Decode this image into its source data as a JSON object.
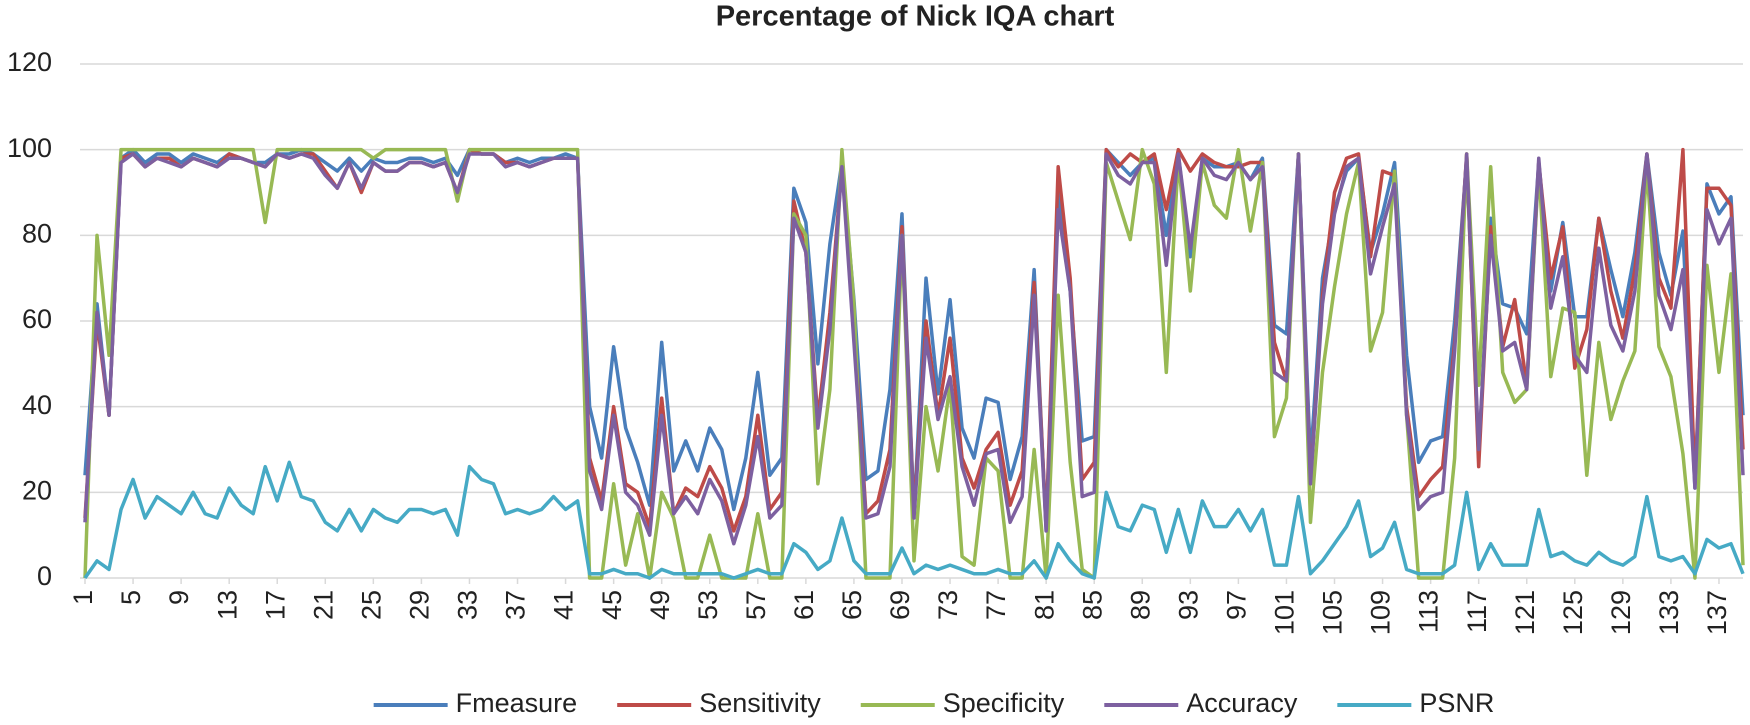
{
  "chart_data": {
    "type": "line",
    "title": "Percentage of Nick IQA chart",
    "x": [
      1,
      2,
      3,
      4,
      5,
      6,
      7,
      8,
      9,
      10,
      11,
      12,
      13,
      14,
      15,
      16,
      17,
      18,
      19,
      20,
      21,
      22,
      23,
      24,
      25,
      26,
      27,
      28,
      29,
      30,
      31,
      32,
      33,
      34,
      35,
      36,
      37,
      38,
      39,
      40,
      41,
      42,
      43,
      44,
      45,
      46,
      47,
      48,
      49,
      50,
      51,
      52,
      53,
      54,
      55,
      56,
      57,
      58,
      59,
      60,
      61,
      62,
      63,
      64,
      65,
      66,
      67,
      68,
      69,
      70,
      71,
      72,
      73,
      74,
      75,
      76,
      77,
      78,
      79,
      80,
      81,
      82,
      83,
      84,
      85,
      86,
      87,
      88,
      89,
      90,
      91,
      92,
      93,
      94,
      95,
      96,
      97,
      98,
      99,
      100,
      101,
      102,
      103,
      104,
      105,
      106,
      107,
      108,
      109,
      110,
      111,
      112,
      113,
      114,
      115,
      116,
      117,
      118,
      119,
      120,
      121,
      122,
      123,
      124,
      125,
      126,
      127,
      128,
      129,
      130,
      131,
      132,
      133,
      134,
      135,
      136,
      137,
      138,
      139
    ],
    "xlim": [
      1,
      139
    ],
    "xticks": [
      1,
      5,
      9,
      13,
      17,
      21,
      25,
      29,
      33,
      37,
      41,
      45,
      49,
      53,
      57,
      61,
      65,
      69,
      73,
      77,
      81,
      85,
      89,
      93,
      97,
      101,
      105,
      109,
      113,
      117,
      121,
      125,
      129,
      133,
      137
    ],
    "ylim": [
      0,
      120
    ],
    "yticks": [
      0,
      20,
      40,
      60,
      80,
      100,
      120
    ],
    "grid": true,
    "legend": "bottom",
    "series": [
      {
        "name": "Fmeasure",
        "color": "#4a7ebb",
        "values": [
          24,
          64,
          38,
          98,
          100,
          97,
          99,
          99,
          97,
          99,
          98,
          97,
          99,
          98,
          97,
          97,
          99,
          99,
          100,
          99,
          97,
          95,
          98,
          95,
          98,
          97,
          97,
          98,
          98,
          97,
          98,
          94,
          100,
          99,
          99,
          97,
          98,
          97,
          98,
          98,
          99,
          98,
          40,
          28,
          54,
          35,
          27,
          17,
          55,
          25,
          32,
          25,
          35,
          30,
          16,
          28,
          48,
          24,
          28,
          91,
          83,
          50,
          78,
          97,
          65,
          23,
          25,
          44,
          85,
          15,
          70,
          43,
          65,
          35,
          28,
          42,
          41,
          23,
          33,
          72,
          11,
          90,
          67,
          32,
          33,
          100,
          97,
          94,
          97,
          98,
          80,
          99,
          75,
          98,
          96,
          96,
          97,
          93,
          98,
          59,
          57,
          99,
          27,
          70,
          86,
          95,
          98,
          76,
          85,
          97,
          52,
          27,
          32,
          33,
          60,
          98,
          28,
          84,
          64,
          63,
          57,
          97,
          67,
          83,
          61,
          61,
          84,
          72,
          61,
          76,
          99,
          76,
          66,
          81,
          21,
          92,
          85,
          89,
          38
        ]
      },
      {
        "name": "Sensitivity",
        "color": "#be4b48",
        "values": [
          14,
          60,
          38,
          98,
          99,
          96,
          98,
          98,
          96,
          98,
          97,
          96,
          99,
          98,
          97,
          96,
          99,
          98,
          99,
          99,
          95,
          91,
          97,
          90,
          97,
          95,
          95,
          97,
          97,
          96,
          97,
          90,
          100,
          99,
          99,
          97,
          97,
          96,
          97,
          98,
          98,
          98,
          28,
          18,
          40,
          22,
          20,
          12,
          42,
          15,
          21,
          19,
          26,
          21,
          11,
          19,
          38,
          16,
          20,
          88,
          76,
          37,
          62,
          96,
          60,
          15,
          18,
          30,
          82,
          15,
          60,
          38,
          56,
          28,
          21,
          30,
          34,
          17,
          25,
          69,
          12,
          96,
          70,
          23,
          27,
          100,
          96,
          99,
          97,
          99,
          86,
          100,
          95,
          99,
          97,
          96,
          96,
          97,
          97,
          55,
          46,
          99,
          22,
          66,
          90,
          98,
          99,
          75,
          95,
          94,
          40,
          19,
          23,
          26,
          55,
          99,
          26,
          82,
          54,
          65,
          45,
          97,
          70,
          82,
          49,
          58,
          84,
          67,
          56,
          72,
          99,
          70,
          63,
          100,
          22,
          91,
          91,
          87,
          30
        ]
      },
      {
        "name": "Specificity",
        "color": "#98b954",
        "values": [
          0,
          80,
          52,
          100,
          100,
          100,
          100,
          100,
          100,
          100,
          100,
          100,
          100,
          100,
          100,
          83,
          100,
          100,
          100,
          100,
          100,
          100,
          100,
          100,
          98,
          100,
          100,
          100,
          100,
          100,
          100,
          88,
          100,
          100,
          100,
          100,
          100,
          100,
          100,
          100,
          100,
          100,
          0,
          0,
          22,
          3,
          15,
          0,
          20,
          14,
          0,
          0,
          10,
          0,
          0,
          0,
          15,
          0,
          0,
          85,
          80,
          22,
          44,
          100,
          64,
          0,
          0,
          0,
          80,
          4,
          40,
          25,
          45,
          5,
          3,
          28,
          25,
          0,
          0,
          30,
          0,
          66,
          27,
          2,
          0,
          97,
          88,
          79,
          100,
          92,
          48,
          98,
          67,
          97,
          87,
          84,
          100,
          81,
          97,
          33,
          42,
          99,
          13,
          48,
          68,
          85,
          97,
          53,
          62,
          95,
          38,
          0,
          0,
          0,
          28,
          99,
          45,
          96,
          48,
          41,
          44,
          96,
          47,
          63,
          62,
          24,
          55,
          37,
          46,
          53,
          96,
          54,
          47,
          29,
          0,
          73,
          48,
          71,
          3
        ]
      },
      {
        "name": "Accuracy",
        "color": "#7d60a0",
        "values": [
          13,
          62,
          38,
          97,
          99,
          96,
          98,
          97,
          96,
          98,
          97,
          96,
          98,
          98,
          97,
          96,
          99,
          98,
          99,
          98,
          94,
          91,
          97,
          91,
          97,
          95,
          95,
          97,
          97,
          96,
          97,
          90,
          99,
          99,
          99,
          96,
          97,
          96,
          97,
          98,
          98,
          98,
          25,
          16,
          38,
          20,
          17,
          10,
          38,
          15,
          19,
          15,
          23,
          18,
          8,
          17,
          33,
          14,
          17,
          84,
          76,
          35,
          58,
          96,
          55,
          14,
          15,
          26,
          80,
          14,
          56,
          37,
          47,
          26,
          17,
          29,
          30,
          13,
          19,
          66,
          11,
          86,
          67,
          19,
          20,
          99,
          94,
          92,
          97,
          97,
          73,
          99,
          77,
          98,
          94,
          93,
          97,
          93,
          96,
          48,
          46,
          99,
          22,
          64,
          85,
          96,
          98,
          71,
          82,
          92,
          38,
          16,
          19,
          20,
          53,
          99,
          30,
          80,
          53,
          55,
          44,
          98,
          63,
          75,
          52,
          48,
          77,
          59,
          53,
          67,
          99,
          66,
          58,
          72,
          21,
          86,
          78,
          84,
          24
        ]
      },
      {
        "name": "PSNR",
        "color": "#46aac5",
        "values": [
          0,
          4,
          2,
          16,
          23,
          14,
          19,
          17,
          15,
          20,
          15,
          14,
          21,
          17,
          15,
          26,
          18,
          27,
          19,
          18,
          13,
          11,
          16,
          11,
          16,
          14,
          13,
          16,
          16,
          15,
          16,
          10,
          26,
          23,
          22,
          15,
          16,
          15,
          16,
          19,
          16,
          18,
          1,
          1,
          2,
          1,
          1,
          0,
          2,
          1,
          1,
          1,
          1,
          1,
          0,
          1,
          2,
          1,
          1,
          8,
          6,
          2,
          4,
          14,
          4,
          1,
          1,
          1,
          7,
          1,
          3,
          2,
          3,
          2,
          1,
          1,
          2,
          1,
          1,
          4,
          0,
          8,
          4,
          1,
          0,
          20,
          12,
          11,
          17,
          16,
          6,
          16,
          6,
          18,
          12,
          12,
          16,
          11,
          16,
          3,
          3,
          19,
          1,
          4,
          8,
          12,
          18,
          5,
          7,
          13,
          2,
          1,
          1,
          1,
          3,
          20,
          2,
          8,
          3,
          3,
          3,
          16,
          5,
          6,
          4,
          3,
          6,
          4,
          3,
          5,
          19,
          5,
          4,
          5,
          1,
          9,
          7,
          8,
          1
        ]
      }
    ]
  }
}
